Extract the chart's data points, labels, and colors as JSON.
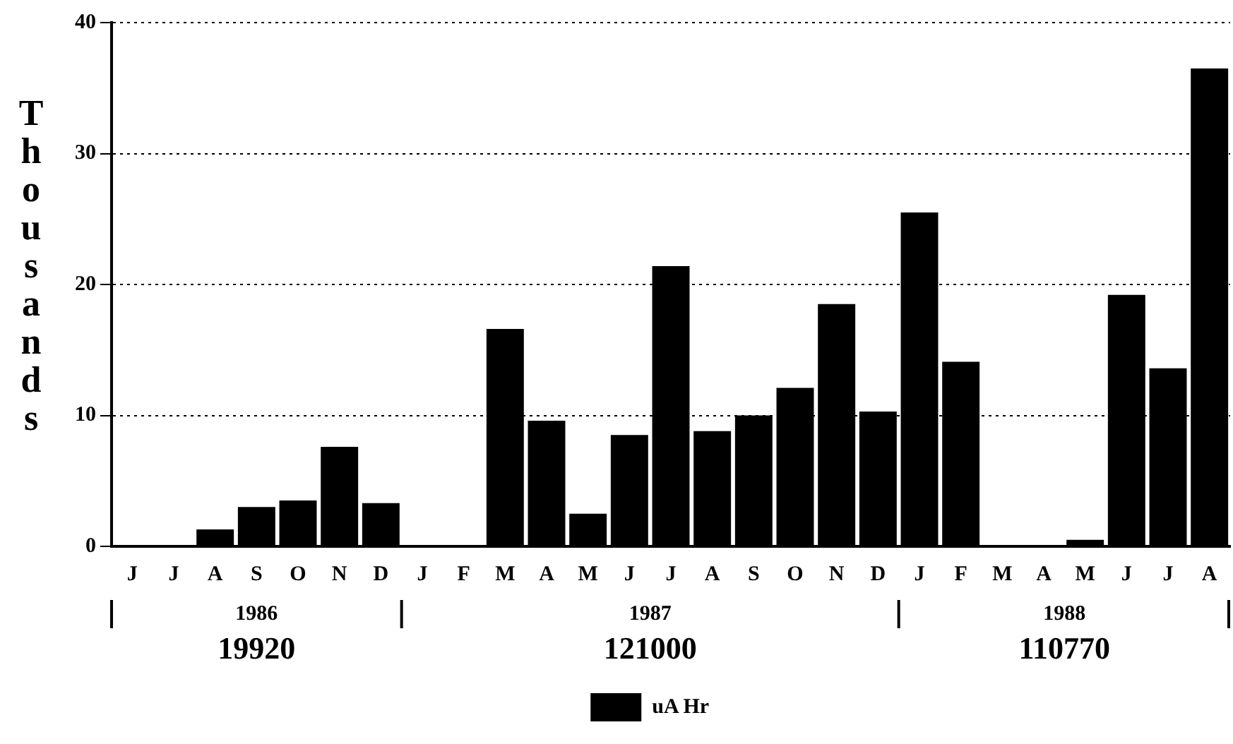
{
  "chart_data": {
    "type": "bar",
    "ylabel": "Thousands",
    "categories": [
      "J",
      "J",
      "A",
      "S",
      "O",
      "N",
      "D",
      "J",
      "F",
      "M",
      "A",
      "M",
      "J",
      "J",
      "A",
      "S",
      "O",
      "N",
      "D",
      "J",
      "F",
      "M",
      "A",
      "M",
      "J",
      "J",
      "A"
    ],
    "series": [
      {
        "name": "uA Hr",
        "color": "#000000",
        "values": [
          0,
          0,
          1.3,
          3.0,
          3.5,
          7.6,
          3.3,
          0,
          0,
          16.6,
          9.6,
          2.5,
          8.5,
          21.4,
          8.8,
          10.0,
          12.1,
          18.5,
          10.3,
          25.5,
          14.1,
          0,
          0,
          0.5,
          19.2,
          13.6,
          36.5
        ]
      }
    ],
    "ylim": [
      0,
      40
    ],
    "yticks": [
      0,
      10,
      20,
      30,
      40
    ],
    "grid": "y",
    "legend": "bottom",
    "annotations": [
      "1986",
      "19920",
      "1987",
      "121000",
      "1988",
      "110770"
    ]
  }
}
